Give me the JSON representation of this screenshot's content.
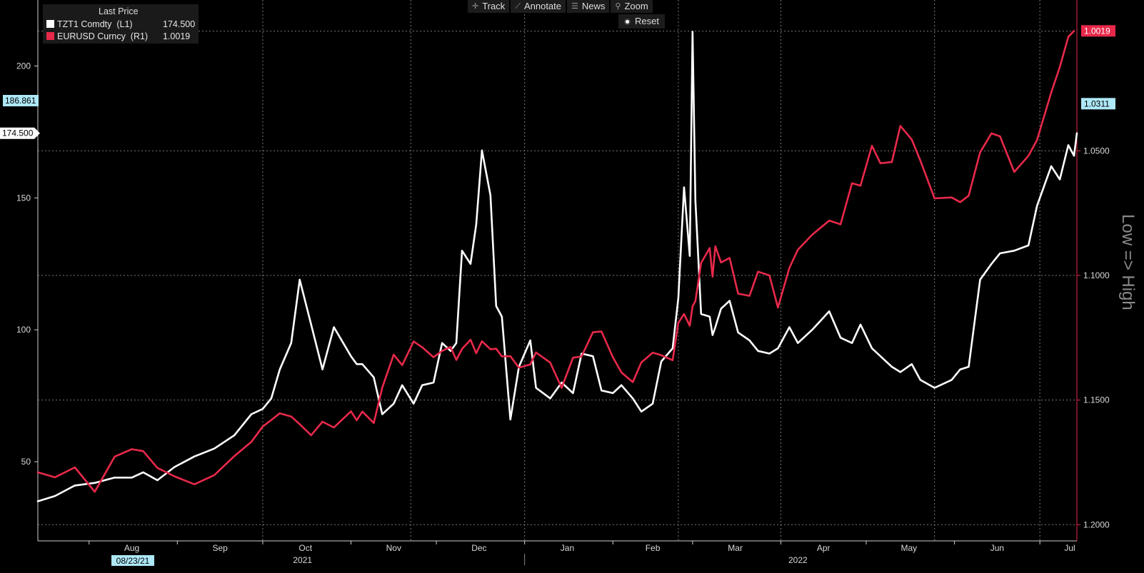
{
  "toolbar": {
    "track_label": "Track",
    "annotate_label": "Annotate",
    "news_label": "News",
    "zoom_label": "Zoom",
    "reset_label": "Reset"
  },
  "legend": {
    "title": "Last Price",
    "series": [
      {
        "name": "TZT1 Comdty  (L1)",
        "value": "174.500",
        "color": "#ffffff"
      },
      {
        "name": "EURUSD Curncy  (R1)",
        "value": "1.0019",
        "color": "#e8294a"
      }
    ]
  },
  "chart_data": {
    "type": "line",
    "title": "",
    "x_range": [
      "2021-07-14",
      "2022-07-14"
    ],
    "left_axis": {
      "range": [
        20,
        225
      ],
      "ticks": [
        "50",
        "100",
        "150",
        "200"
      ],
      "markers": [
        {
          "label": "186.861",
          "value": 186.861,
          "color": "#aee8f7"
        },
        {
          "label": "174.500",
          "value": 174.5,
          "color": "#ffffff"
        }
      ]
    },
    "right_axis": {
      "inverted": true,
      "label": "Low => High",
      "range": [
        1.2065,
        0.9895
      ],
      "ticks": [
        "1.0500",
        "1.1000",
        "1.1500",
        "1.2000"
      ],
      "markers": [
        {
          "label": "1.0311",
          "value": 1.0311,
          "color": "#aee8f7"
        },
        {
          "label": "1.0019",
          "value": 1.0019,
          "color": "#e8294a"
        }
      ]
    },
    "x_axis": {
      "months": [
        "Aug",
        "Sep",
        "Oct",
        "Nov",
        "Dec",
        "Jan",
        "Feb",
        "Mar",
        "Apr",
        "May",
        "Jun",
        "Jul"
      ],
      "years": [
        "2021",
        "2022"
      ],
      "start_label": "08/23/21"
    },
    "series": [
      {
        "name": "TZT1 Comdty",
        "color": "#ffffff",
        "dates": [
          "2021-07-14",
          "2021-07-20",
          "2021-07-27",
          "2021-08-03",
          "2021-08-10",
          "2021-08-16",
          "2021-08-20",
          "2021-08-25",
          "2021-08-31",
          "2021-09-07",
          "2021-09-14",
          "2021-09-21",
          "2021-09-27",
          "2021-10-01",
          "2021-10-04",
          "2021-10-07",
          "2021-10-11",
          "2021-10-14",
          "2021-10-18",
          "2021-10-22",
          "2021-10-26",
          "2021-11-01",
          "2021-11-03",
          "2021-11-05",
          "2021-11-09",
          "2021-11-12",
          "2021-11-16",
          "2021-11-19",
          "2021-11-23",
          "2021-11-26",
          "2021-11-30",
          "2021-12-03",
          "2021-12-06",
          "2021-12-08",
          "2021-12-10",
          "2021-12-13",
          "2021-12-15",
          "2021-12-17",
          "2021-12-20",
          "2021-12-22",
          "2021-12-24",
          "2021-12-27",
          "2021-12-30",
          "2022-01-03",
          "2022-01-05",
          "2022-01-10",
          "2022-01-14",
          "2022-01-18",
          "2022-01-21",
          "2022-01-25",
          "2022-01-28",
          "2022-02-01",
          "2022-02-04",
          "2022-02-08",
          "2022-02-11",
          "2022-02-15",
          "2022-02-18",
          "2022-02-22",
          "2022-02-24",
          "2022-02-26",
          "2022-02-28",
          "2022-03-01",
          "2022-03-02",
          "2022-03-04",
          "2022-03-07",
          "2022-03-08",
          "2022-03-09",
          "2022-03-11",
          "2022-03-14",
          "2022-03-17",
          "2022-03-21",
          "2022-03-24",
          "2022-03-28",
          "2022-03-31",
          "2022-04-04",
          "2022-04-07",
          "2022-04-12",
          "2022-04-18",
          "2022-04-22",
          "2022-04-26",
          "2022-04-29",
          "2022-05-03",
          "2022-05-06",
          "2022-05-10",
          "2022-05-13",
          "2022-05-17",
          "2022-05-20",
          "2022-05-25",
          "2022-05-31",
          "2022-06-03",
          "2022-06-06",
          "2022-06-10",
          "2022-06-14",
          "2022-06-17",
          "2022-06-22",
          "2022-06-27",
          "2022-06-30",
          "2022-07-05",
          "2022-07-08",
          "2022-07-11",
          "2022-07-13"
        ],
        "values": [
          35,
          37,
          41,
          42,
          44,
          44,
          46,
          43,
          48,
          52,
          55,
          60,
          68,
          70,
          74,
          85,
          95,
          119,
          102,
          85,
          101,
          90,
          87,
          87,
          82,
          68,
          72,
          79,
          72,
          79,
          80,
          95,
          92,
          95,
          130,
          125,
          140,
          168,
          151,
          109,
          105,
          66,
          86,
          96,
          78,
          74,
          80,
          76,
          91,
          90,
          77,
          76,
          79,
          74,
          69,
          72,
          88,
          93,
          112,
          154,
          128,
          213,
          149,
          106,
          105,
          98,
          101,
          108,
          111,
          99,
          96,
          92,
          91,
          93,
          101,
          95,
          100,
          107,
          97,
          95,
          102,
          93,
          90,
          86,
          84,
          87,
          81,
          78,
          81,
          85,
          86,
          119,
          125,
          129,
          130,
          132,
          147,
          162,
          157,
          170,
          166
        ],
        "latest": 174.5
      },
      {
        "name": "EURUSD Curncy",
        "color": "#e8294a",
        "dates": [
          "2021-07-14",
          "2021-07-20",
          "2021-07-27",
          "2021-08-03",
          "2021-08-10",
          "2021-08-16",
          "2021-08-20",
          "2021-08-25",
          "2021-08-31",
          "2021-09-07",
          "2021-09-14",
          "2021-09-21",
          "2021-09-27",
          "2021-10-01",
          "2021-10-04",
          "2021-10-07",
          "2021-10-11",
          "2021-10-14",
          "2021-10-18",
          "2021-10-22",
          "2021-10-26",
          "2021-11-01",
          "2021-11-03",
          "2021-11-05",
          "2021-11-09",
          "2021-11-12",
          "2021-11-16",
          "2021-11-19",
          "2021-11-23",
          "2021-11-26",
          "2021-11-30",
          "2021-12-03",
          "2021-12-06",
          "2021-12-08",
          "2021-12-10",
          "2021-12-13",
          "2021-12-15",
          "2021-12-17",
          "2021-12-20",
          "2021-12-22",
          "2021-12-24",
          "2021-12-27",
          "2021-12-30",
          "2022-01-03",
          "2022-01-05",
          "2022-01-10",
          "2022-01-14",
          "2022-01-18",
          "2022-01-21",
          "2022-01-25",
          "2022-01-28",
          "2022-02-01",
          "2022-02-04",
          "2022-02-08",
          "2022-02-11",
          "2022-02-15",
          "2022-02-18",
          "2022-02-22",
          "2022-02-24",
          "2022-02-26",
          "2022-02-28",
          "2022-03-01",
          "2022-03-02",
          "2022-03-04",
          "2022-03-07",
          "2022-03-08",
          "2022-03-09",
          "2022-03-11",
          "2022-03-14",
          "2022-03-17",
          "2022-03-21",
          "2022-03-24",
          "2022-03-28",
          "2022-03-31",
          "2022-04-04",
          "2022-04-07",
          "2022-04-12",
          "2022-04-18",
          "2022-04-22",
          "2022-04-26",
          "2022-04-29",
          "2022-05-03",
          "2022-05-06",
          "2022-05-10",
          "2022-05-13",
          "2022-05-17",
          "2022-05-20",
          "2022-05-25",
          "2022-05-31",
          "2022-06-03",
          "2022-06-06",
          "2022-06-10",
          "2022-06-14",
          "2022-06-17",
          "2022-06-22",
          "2022-06-27",
          "2022-06-30",
          "2022-07-05",
          "2022-07-08",
          "2022-07-11",
          "2022-07-13"
        ],
        "values": [
          1.179,
          1.181,
          1.177,
          1.1868,
          1.1727,
          1.1697,
          1.1705,
          1.1772,
          1.1806,
          1.1838,
          1.1801,
          1.1725,
          1.1668,
          1.1606,
          1.158,
          1.1553,
          1.1566,
          1.1597,
          1.1641,
          1.1587,
          1.161,
          1.1545,
          1.1581,
          1.1546,
          1.1592,
          1.145,
          1.1318,
          1.136,
          1.1265,
          1.1288,
          1.1328,
          1.1303,
          1.1287,
          1.1339,
          1.1295,
          1.1258,
          1.1312,
          1.1264,
          1.1296,
          1.1294,
          1.1325,
          1.1324,
          1.137,
          1.1357,
          1.1309,
          1.135,
          1.1451,
          1.133,
          1.1325,
          1.1228,
          1.1225,
          1.1328,
          1.1389,
          1.1428,
          1.1349,
          1.131,
          1.132,
          1.134,
          1.119,
          1.1155,
          1.1202,
          1.1124,
          1.1103,
          1.095,
          1.089,
          1.1005,
          1.0883,
          1.0948,
          1.093,
          1.1073,
          1.1082,
          1.0985,
          1.1,
          1.1129,
          1.097,
          1.0897,
          1.0837,
          1.078,
          1.0795,
          1.063,
          1.064,
          1.048,
          1.055,
          1.0545,
          1.04,
          1.0455,
          1.0539,
          1.0691,
          1.0687,
          1.0706,
          1.068,
          1.0506,
          1.043,
          1.0442,
          1.0585,
          1.052,
          1.0457,
          1.0266,
          1.0164,
          1.0043,
          1.0019
        ],
        "latest": 1.0019
      }
    ],
    "grid": true,
    "legend_position": "top-left"
  }
}
